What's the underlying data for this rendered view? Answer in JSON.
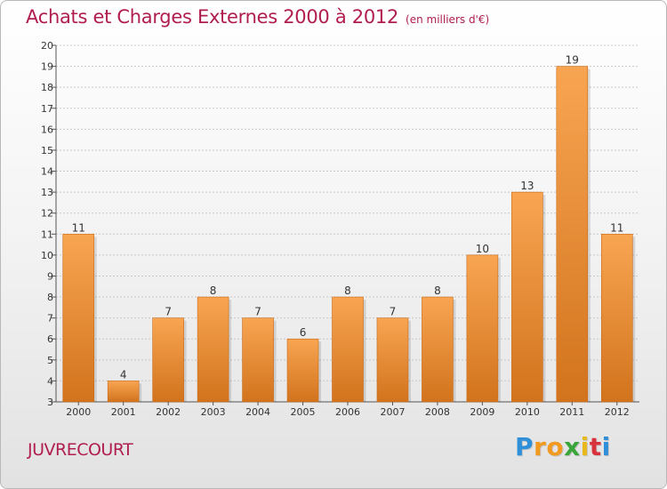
{
  "title": "Achats et Charges Externes 2000 à 2012",
  "subtitle": "(en milliers d'€)",
  "commune": "JUVRECOURT",
  "logo": {
    "letters": [
      "P",
      "r",
      "o",
      "x",
      "i",
      "t",
      "i"
    ],
    "colors": [
      "#2f8fd8",
      "#f29a1f",
      "#f29a1f",
      "#3aa63a",
      "#e8b81c",
      "#d8323c",
      "#2f8fd8"
    ]
  },
  "colors": {
    "title": "#b01d4e",
    "bar_top": "#f8a552",
    "bar_bottom": "#d2731d",
    "grid": "#c8c8c8",
    "axis": "#555555"
  },
  "chart_data": {
    "type": "bar",
    "title": "Achats et Charges Externes 2000 à 2012",
    "subtitle": "(en milliers d'€)",
    "categories": [
      "2000",
      "2001",
      "2002",
      "2003",
      "2004",
      "2005",
      "2006",
      "2007",
      "2008",
      "2009",
      "2010",
      "2011",
      "2012"
    ],
    "values": [
      11,
      4,
      7,
      8,
      7,
      6,
      8,
      7,
      8,
      10,
      13,
      19,
      11
    ],
    "data_labels": [
      "11",
      "4",
      "7",
      "8",
      "7",
      "6",
      "8",
      "7",
      "8",
      "10",
      "13",
      "19",
      "11"
    ],
    "ylim": [
      3,
      20
    ],
    "yticks": [
      "3",
      "4",
      "5",
      "6",
      "7",
      "8",
      "9",
      "10",
      "11",
      "12",
      "13",
      "14",
      "15",
      "16",
      "17",
      "18",
      "19",
      "20"
    ],
    "xlabel": "",
    "ylabel": "",
    "grid": true,
    "legend": "none"
  }
}
